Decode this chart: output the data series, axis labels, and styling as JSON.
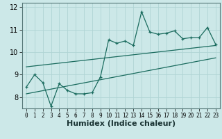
{
  "title": "",
  "xlabel": "Humidex (Indice chaleur)",
  "ylabel": "",
  "bg_color": "#cce8e8",
  "line_color": "#1a6b5e",
  "xlim": [
    -0.5,
    23.5
  ],
  "ylim": [
    7.5,
    12.2
  ],
  "yticks": [
    8,
    9,
    10,
    11,
    12
  ],
  "xticks": [
    0,
    1,
    2,
    3,
    4,
    5,
    6,
    7,
    8,
    9,
    10,
    11,
    12,
    13,
    14,
    15,
    16,
    17,
    18,
    19,
    20,
    21,
    22,
    23
  ],
  "main_x": [
    0,
    1,
    2,
    3,
    4,
    5,
    6,
    7,
    8,
    9,
    10,
    11,
    12,
    13,
    14,
    15,
    16,
    17,
    18,
    19,
    20,
    21,
    22,
    23
  ],
  "main_y": [
    8.45,
    9.0,
    8.65,
    7.6,
    8.6,
    8.3,
    8.15,
    8.15,
    8.2,
    8.9,
    10.55,
    10.4,
    10.5,
    10.3,
    11.8,
    10.9,
    10.8,
    10.85,
    10.95,
    10.6,
    10.65,
    10.65,
    11.1,
    10.35
  ],
  "upper_line_x": [
    0,
    23
  ],
  "upper_line_y": [
    9.35,
    10.3
  ],
  "lower_line_x": [
    0,
    23
  ],
  "lower_line_y": [
    8.15,
    9.75
  ],
  "grid_color": "#b0d4d4",
  "tick_fontsize": 7,
  "label_fontsize": 8
}
